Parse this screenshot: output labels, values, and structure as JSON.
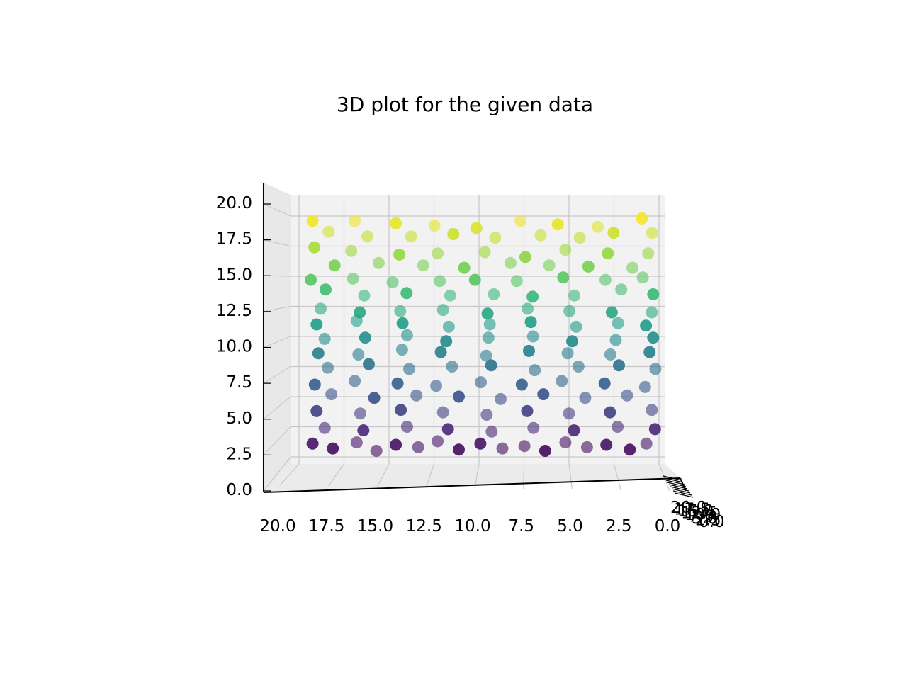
{
  "chart_data": {
    "type": "scatter",
    "projection": "3d",
    "title": "3D plot for the given data",
    "xlabel": "",
    "ylabel": "",
    "zlabel": "",
    "xlim": [
      0,
      20
    ],
    "ylim": [
      0,
      20
    ],
    "zlim": [
      0,
      20
    ],
    "x_ticks": [
      "20.0",
      "17.5",
      "15.0",
      "12.5",
      "10.0",
      "7.5",
      "5.0",
      "2.5",
      "0.0"
    ],
    "z_ticks": [
      "20.0",
      "17.5",
      "15.0",
      "12.5",
      "10.0",
      "7.5",
      "5.0",
      "2.5",
      "0.0"
    ],
    "y_ticks": [
      "20.0",
      "17.5",
      "15.0",
      "12.5",
      "10.0",
      "7.5",
      "5.0",
      "2.5",
      "0.0"
    ],
    "grid": true,
    "colormap": "viridis",
    "color_by": "z",
    "marker_alpha": 0.45,
    "view": "front (x axis reversed)",
    "series": [
      {
        "points": [
          [
            19.2,
            1.0,
            19.6
          ],
          [
            16.9,
            1.2,
            19.6
          ],
          [
            14.6,
            1.1,
            19.4
          ],
          [
            12.5,
            1.3,
            19.2
          ],
          [
            10.1,
            1.0,
            19.0
          ],
          [
            7.7,
            1.2,
            19.6
          ],
          [
            5.6,
            1.1,
            19.3
          ],
          [
            3.4,
            1.2,
            19.1
          ],
          [
            0.9,
            1.0,
            19.8
          ],
          [
            18.4,
            1.4,
            18.7
          ],
          [
            16.2,
            1.2,
            18.3
          ],
          [
            13.8,
            1.3,
            18.3
          ],
          [
            11.4,
            1.1,
            18.5
          ],
          [
            9.1,
            1.2,
            18.2
          ],
          [
            6.6,
            1.3,
            18.4
          ],
          [
            4.4,
            1.2,
            18.2
          ],
          [
            2.5,
            1.1,
            18.6
          ],
          [
            0.4,
            1.3,
            18.6
          ],
          [
            19.1,
            1.0,
            17.4
          ],
          [
            17.1,
            1.2,
            17.1
          ],
          [
            14.4,
            1.1,
            16.8
          ],
          [
            12.3,
            1.2,
            16.9
          ],
          [
            9.7,
            1.3,
            17.0
          ],
          [
            7.4,
            1.1,
            16.6
          ],
          [
            5.2,
            1.2,
            17.2
          ],
          [
            2.8,
            1.0,
            16.9
          ],
          [
            0.6,
            1.2,
            16.9
          ],
          [
            18.0,
            1.1,
            15.9
          ],
          [
            15.6,
            1.3,
            16.1
          ],
          [
            13.1,
            1.2,
            15.9
          ],
          [
            10.8,
            1.1,
            15.7
          ],
          [
            8.3,
            1.4,
            16.1
          ],
          [
            6.1,
            1.2,
            15.9
          ],
          [
            3.9,
            1.1,
            15.8
          ],
          [
            1.5,
            1.3,
            15.7
          ],
          [
            19.3,
            1.0,
            14.7
          ],
          [
            17.0,
            1.2,
            14.8
          ],
          [
            14.8,
            1.2,
            14.5
          ],
          [
            12.2,
            1.3,
            14.6
          ],
          [
            10.2,
            1.1,
            14.7
          ],
          [
            7.9,
            1.2,
            14.6
          ],
          [
            5.3,
            1.1,
            14.9
          ],
          [
            3.0,
            1.3,
            14.7
          ],
          [
            0.9,
            1.2,
            14.9
          ],
          [
            18.5,
            1.1,
            13.9
          ],
          [
            16.4,
            1.3,
            13.4
          ],
          [
            14.0,
            1.1,
            13.6
          ],
          [
            11.6,
            1.2,
            13.4
          ],
          [
            9.2,
            1.3,
            13.5
          ],
          [
            7.0,
            1.1,
            13.3
          ],
          [
            4.7,
            1.2,
            13.4
          ],
          [
            2.1,
            1.2,
            13.9
          ],
          [
            0.3,
            1.1,
            13.5
          ],
          [
            18.8,
            1.2,
            12.3
          ],
          [
            16.6,
            1.1,
            12.0
          ],
          [
            14.4,
            1.3,
            12.1
          ],
          [
            12.0,
            1.2,
            12.2
          ],
          [
            9.5,
            1.1,
            11.9
          ],
          [
            7.3,
            1.2,
            12.3
          ],
          [
            5.0,
            1.3,
            12.1
          ],
          [
            2.6,
            1.1,
            12.0
          ],
          [
            0.4,
            1.2,
            12.0
          ],
          [
            19.0,
            1.1,
            11.0
          ],
          [
            16.8,
            1.2,
            11.3
          ],
          [
            14.2,
            1.0,
            11.1
          ],
          [
            11.7,
            1.3,
            10.8
          ],
          [
            9.4,
            1.2,
            11.0
          ],
          [
            7.1,
            1.1,
            11.2
          ],
          [
            4.6,
            1.2,
            10.8
          ],
          [
            2.3,
            1.3,
            11.1
          ],
          [
            0.7,
            1.1,
            10.9
          ],
          [
            18.6,
            1.3,
            9.8
          ],
          [
            16.3,
            1.1,
            9.9
          ],
          [
            14.0,
            1.2,
            10.1
          ],
          [
            11.8,
            1.1,
            9.6
          ],
          [
            9.5,
            1.3,
            9.9
          ],
          [
            7.0,
            1.2,
            10.0
          ],
          [
            4.8,
            1.1,
            9.6
          ],
          [
            2.4,
            1.2,
            9.7
          ],
          [
            0.3,
            1.1,
            9.9
          ],
          [
            18.9,
            1.1,
            8.6
          ],
          [
            16.7,
            1.2,
            8.5
          ],
          [
            14.3,
            1.3,
            8.9
          ],
          [
            12.1,
            1.1,
            8.7
          ],
          [
            9.6,
            1.2,
            8.4
          ],
          [
            7.2,
            1.1,
            8.8
          ],
          [
            5.1,
            1.3,
            8.6
          ],
          [
            2.7,
            1.2,
            8.5
          ],
          [
            0.5,
            1.1,
            8.7
          ],
          [
            18.4,
            1.2,
            7.4
          ],
          [
            16.1,
            1.1,
            7.7
          ],
          [
            13.9,
            1.3,
            7.3
          ],
          [
            11.5,
            1.2,
            7.5
          ],
          [
            9.3,
            1.1,
            7.6
          ],
          [
            6.9,
            1.2,
            7.2
          ],
          [
            4.5,
            1.3,
            7.5
          ],
          [
            2.2,
            1.1,
            7.6
          ],
          [
            0.2,
            1.2,
            7.3
          ],
          [
            19.1,
            1.1,
            6.0
          ],
          [
            16.9,
            1.2,
            6.3
          ],
          [
            14.5,
            1.1,
            6.1
          ],
          [
            12.4,
            1.3,
            5.9
          ],
          [
            9.9,
            1.2,
            6.2
          ],
          [
            7.6,
            1.1,
            6.0
          ],
          [
            5.4,
            1.2,
            6.3
          ],
          [
            3.0,
            1.1,
            6.1
          ],
          [
            0.8,
            1.3,
            5.8
          ],
          [
            18.2,
            1.2,
            5.2
          ],
          [
            15.8,
            1.1,
            4.9
          ],
          [
            13.5,
            1.3,
            5.1
          ],
          [
            11.1,
            1.1,
            5.0
          ],
          [
            8.8,
            1.2,
            4.8
          ],
          [
            6.4,
            1.1,
            5.2
          ],
          [
            4.1,
            1.2,
            4.9
          ],
          [
            1.8,
            1.3,
            5.1
          ],
          [
            19.0,
            1.1,
            3.8
          ],
          [
            16.6,
            1.2,
            3.6
          ],
          [
            14.3,
            1.0,
            3.9
          ],
          [
            12.0,
            1.2,
            3.7
          ],
          [
            9.6,
            1.3,
            3.5
          ],
          [
            7.3,
            1.1,
            3.8
          ],
          [
            5.0,
            1.2,
            3.6
          ],
          [
            2.7,
            1.1,
            3.7
          ],
          [
            0.4,
            1.2,
            3.9
          ],
          [
            18.6,
            1.3,
            2.4
          ],
          [
            16.4,
            1.1,
            2.2
          ],
          [
            14.0,
            1.2,
            2.5
          ],
          [
            11.7,
            1.1,
            2.3
          ],
          [
            9.3,
            1.2,
            2.1
          ],
          [
            7.0,
            1.3,
            2.4
          ],
          [
            4.7,
            1.1,
            2.2
          ],
          [
            2.3,
            1.2,
            2.5
          ],
          [
            0.2,
            1.1,
            2.3
          ],
          [
            19.2,
            1.0,
            1.1
          ],
          [
            16.8,
            1.2,
            1.2
          ],
          [
            14.6,
            1.1,
            1.0
          ],
          [
            12.3,
            1.2,
            1.3
          ],
          [
            9.9,
            1.1,
            1.1
          ],
          [
            7.5,
            1.3,
            0.9
          ],
          [
            5.2,
            1.2,
            1.2
          ],
          [
            2.9,
            1.1,
            1.0
          ],
          [
            0.7,
            1.2,
            1.1
          ],
          [
            18.1,
            1.1,
            0.7
          ],
          [
            15.7,
            1.2,
            0.5
          ],
          [
            13.4,
            1.3,
            0.8
          ],
          [
            11.1,
            1.1,
            0.6
          ],
          [
            8.7,
            1.2,
            0.7
          ],
          [
            6.3,
            1.1,
            0.5
          ],
          [
            4.0,
            1.2,
            0.8
          ],
          [
            1.6,
            1.1,
            0.6
          ]
        ]
      }
    ]
  }
}
